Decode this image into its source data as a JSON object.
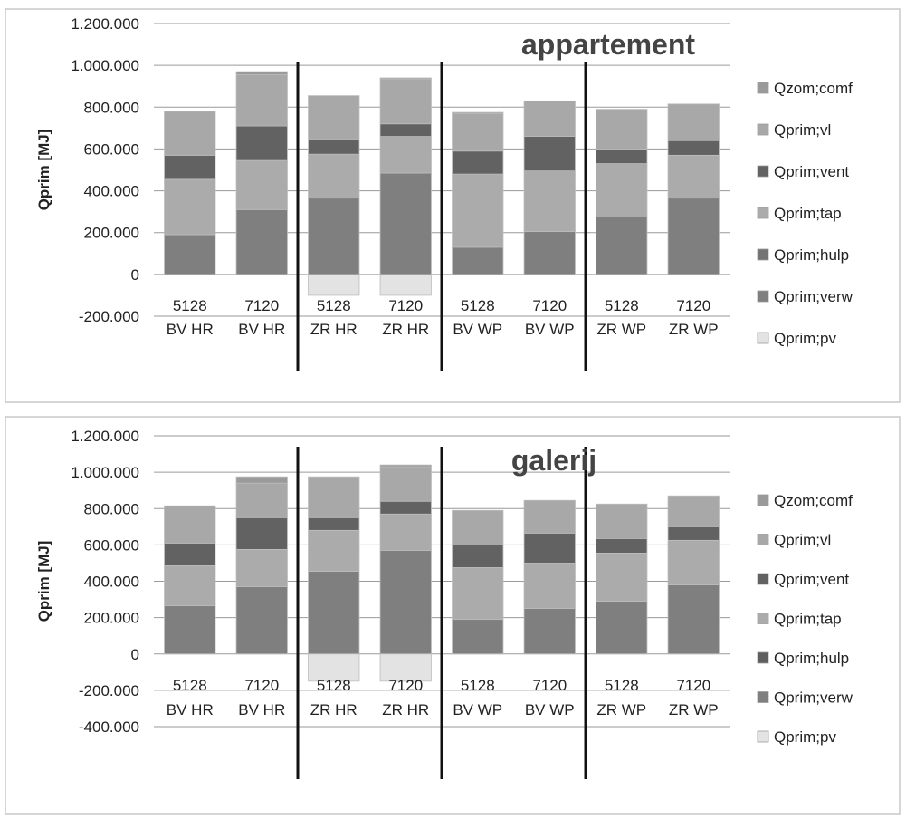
{
  "chart_data": [
    {
      "type": "bar",
      "stacked": true,
      "title": "appartement",
      "ylabel": "Qprim [MJ]",
      "ylim": [
        -200000,
        1200000
      ],
      "yticks": [
        -200000,
        0,
        200000,
        400000,
        600000,
        800000,
        1000000,
        1200000
      ],
      "ytick_labels": [
        "-200.000",
        "0",
        "200.000",
        "400.000",
        "600.000",
        "800.000",
        "1.000.000",
        "1.200.000"
      ],
      "grid": true,
      "legend_position": "right",
      "categories": [
        [
          "5128",
          "BV HR"
        ],
        [
          "7120",
          "BV HR"
        ],
        [
          "5128",
          "ZR HR"
        ],
        [
          "7120",
          "ZR HR"
        ],
        [
          "5128",
          "BV WP"
        ],
        [
          "7120",
          "BV WP"
        ],
        [
          "5128",
          "ZR WP"
        ],
        [
          "7120",
          "ZR WP"
        ]
      ],
      "group_separators_after": [
        2,
        4,
        6
      ],
      "series": [
        {
          "name": "Qprim;pv",
          "color": "#e3e3e3",
          "values": [
            0,
            0,
            -100000,
            -100000,
            0,
            0,
            0,
            0
          ]
        },
        {
          "name": "Qprim;verw",
          "color": "#7f7f7f",
          "values": [
            190000,
            310000,
            365000,
            485000,
            130000,
            205000,
            275000,
            365000
          ]
        },
        {
          "name": "Qprim;hulp",
          "color": "#747474",
          "values": [
            0,
            0,
            0,
            0,
            0,
            0,
            0,
            0
          ]
        },
        {
          "name": "Qprim;tap",
          "color": "#ababab",
          "values": [
            265000,
            235000,
            210000,
            175000,
            350000,
            290000,
            255000,
            205000
          ]
        },
        {
          "name": "Qprim;vent",
          "color": "#626262",
          "values": [
            115000,
            165000,
            70000,
            60000,
            110000,
            165000,
            70000,
            70000
          ]
        },
        {
          "name": "Qprim;vl",
          "color": "#a8a8a8",
          "values": [
            210000,
            245000,
            210000,
            215000,
            180000,
            170000,
            190000,
            175000
          ]
        },
        {
          "name": "Qzom;comf",
          "color": "#9a9a9a",
          "values": [
            0,
            15000,
            0,
            5000,
            5000,
            0,
            0,
            0
          ]
        }
      ]
    },
    {
      "type": "bar",
      "stacked": true,
      "title": "galerij",
      "ylabel": "Qprim [MJ]",
      "ylim": [
        -400000,
        1200000
      ],
      "yticks": [
        -400000,
        -200000,
        0,
        200000,
        400000,
        600000,
        800000,
        1000000,
        1200000
      ],
      "ytick_labels": [
        "-400.000",
        "-200.000",
        "0",
        "200.000",
        "400.000",
        "600.000",
        "800.000",
        "1.000.000",
        "1.200.000"
      ],
      "grid": true,
      "legend_position": "right",
      "categories": [
        [
          "5128",
          "BV  HR"
        ],
        [
          "7120",
          "BV  HR"
        ],
        [
          "5128",
          "ZR HR"
        ],
        [
          "7120",
          "ZR HR"
        ],
        [
          "5128",
          "BV WP"
        ],
        [
          "7120",
          "BV WP"
        ],
        [
          "5128",
          "ZR WP"
        ],
        [
          "7120",
          "ZR WP"
        ]
      ],
      "group_separators_after": [
        2,
        4,
        6
      ],
      "series": [
        {
          "name": "Qprim;pv",
          "color": "#e3e3e3",
          "values": [
            0,
            0,
            -150000,
            -150000,
            0,
            0,
            0,
            0
          ]
        },
        {
          "name": "Qprim;verw",
          "color": "#7f7f7f",
          "values": [
            265000,
            370000,
            455000,
            570000,
            190000,
            250000,
            290000,
            380000
          ]
        },
        {
          "name": "Qprim;hulp",
          "color": "#5e5e5e",
          "values": [
            0,
            0,
            0,
            0,
            0,
            0,
            0,
            0
          ]
        },
        {
          "name": "Qprim;tap",
          "color": "#ababab",
          "values": [
            220000,
            205000,
            225000,
            200000,
            285000,
            250000,
            265000,
            245000
          ]
        },
        {
          "name": "Qprim;vent",
          "color": "#626262",
          "values": [
            125000,
            175000,
            70000,
            70000,
            125000,
            165000,
            80000,
            75000
          ]
        },
        {
          "name": "Qprim;vl",
          "color": "#a8a8a8",
          "values": [
            205000,
            190000,
            220000,
            190000,
            190000,
            180000,
            190000,
            170000
          ]
        },
        {
          "name": "Qzom;comf",
          "color": "#9a9a9a",
          "values": [
            0,
            35000,
            5000,
            10000,
            0,
            0,
            0,
            0
          ]
        }
      ]
    }
  ]
}
